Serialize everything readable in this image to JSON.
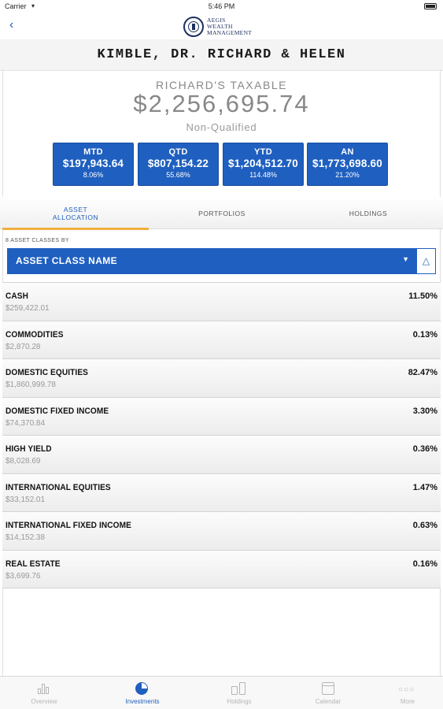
{
  "status_bar": {
    "carrier": "Carrier",
    "time": "5:46 PM"
  },
  "nav": {
    "back_icon": "chevron-left-icon",
    "logo_lines": [
      "AEGIS",
      "WEALTH",
      "MANAGEMENT"
    ]
  },
  "client": {
    "name": "KIMBLE, DR. RICHARD & HELEN"
  },
  "account": {
    "name": "RICHARD'S TAXABLE",
    "value": "$2,256,695.74",
    "type": "Non-Qualified"
  },
  "returns": [
    {
      "label": "MTD",
      "amount": "$197,943.64",
      "pct": "8.06%"
    },
    {
      "label": "QTD",
      "amount": "$807,154.22",
      "pct": "55.68%"
    },
    {
      "label": "YTD",
      "amount": "$1,204,512.70",
      "pct": "114.48%"
    },
    {
      "label": "AN",
      "amount": "$1,773,698.60",
      "pct": "21.20%"
    }
  ],
  "tabs": [
    {
      "label": "ASSET ALLOCATION",
      "active": true
    },
    {
      "label": "PORTFOLIOS",
      "active": false
    },
    {
      "label": "HOLDINGS",
      "active": false
    }
  ],
  "filter": {
    "label": "8 ASSET CLASSES BY",
    "selected": "ASSET CLASS NAME",
    "caret_icon": "caret-down-icon",
    "sort_icon": "chevron-up-icon"
  },
  "assets": [
    {
      "name": "CASH",
      "amount": "$259,422.01",
      "pct": "11.50%"
    },
    {
      "name": "COMMODITIES",
      "amount": "$2,870.28",
      "pct": "0.13%"
    },
    {
      "name": "DOMESTIC EQUITIES",
      "amount": "$1,860,999.78",
      "pct": "82.47%"
    },
    {
      "name": "DOMESTIC FIXED INCOME",
      "amount": "$74,370.84",
      "pct": "3.30%"
    },
    {
      "name": "HIGH YIELD",
      "amount": "$8,028.69",
      "pct": "0.36%"
    },
    {
      "name": "INTERNATIONAL EQUITIES",
      "amount": "$33,152.01",
      "pct": "1.47%"
    },
    {
      "name": "INTERNATIONAL FIXED INCOME",
      "amount": "$14,152.38",
      "pct": "0.63%"
    },
    {
      "name": "REAL ESTATE",
      "amount": "$3,699.76",
      "pct": "0.16%"
    }
  ],
  "tab_bar": [
    {
      "label": "Overview",
      "icon": "bar-chart-icon",
      "active": false
    },
    {
      "label": "Investments",
      "icon": "pie-chart-icon",
      "active": true
    },
    {
      "label": "Holdings",
      "icon": "coins-icon",
      "active": false
    },
    {
      "label": "Calendar",
      "icon": "calendar-icon",
      "active": false
    },
    {
      "label": "More",
      "icon": "more-icon",
      "active": false
    }
  ],
  "colors": {
    "primary": "#1f5fbf",
    "tab_indicator": "#f0b040",
    "muted": "#888888"
  }
}
